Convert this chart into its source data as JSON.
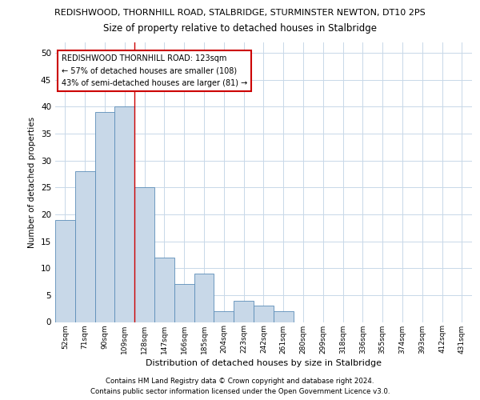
{
  "title1": "REDISHWOOD, THORNHILL ROAD, STALBRIDGE, STURMINSTER NEWTON, DT10 2PS",
  "title2": "Size of property relative to detached houses in Stalbridge",
  "xlabel": "Distribution of detached houses by size in Stalbridge",
  "ylabel": "Number of detached properties",
  "categories": [
    "52sqm",
    "71sqm",
    "90sqm",
    "109sqm",
    "128sqm",
    "147sqm",
    "166sqm",
    "185sqm",
    "204sqm",
    "223sqm",
    "242sqm",
    "261sqm",
    "280sqm",
    "299sqm",
    "318sqm",
    "336sqm",
    "355sqm",
    "374sqm",
    "393sqm",
    "412sqm",
    "431sqm"
  ],
  "values": [
    19,
    28,
    39,
    40,
    25,
    12,
    7,
    9,
    2,
    4,
    3,
    2,
    0,
    0,
    0,
    0,
    0,
    0,
    0,
    0,
    0
  ],
  "bar_color": "#c8d8e8",
  "bar_edge_color": "#5b8db8",
  "marker_line_color": "#cc0000",
  "annotation_title": "REDISHWOOD THORNHILL ROAD: 123sqm",
  "annotation_line1": "← 57% of detached houses are smaller (108)",
  "annotation_line2": "43% of semi-detached houses are larger (81) →",
  "annotation_box_color": "#ffffff",
  "annotation_box_edge_color": "#cc0000",
  "ylim": [
    0,
    52
  ],
  "yticks": [
    0,
    5,
    10,
    15,
    20,
    25,
    30,
    35,
    40,
    45,
    50
  ],
  "footer1": "Contains HM Land Registry data © Crown copyright and database right 2024.",
  "footer2": "Contains public sector information licensed under the Open Government Licence v3.0.",
  "bg_color": "#ffffff",
  "grid_color": "#c8d8e8"
}
